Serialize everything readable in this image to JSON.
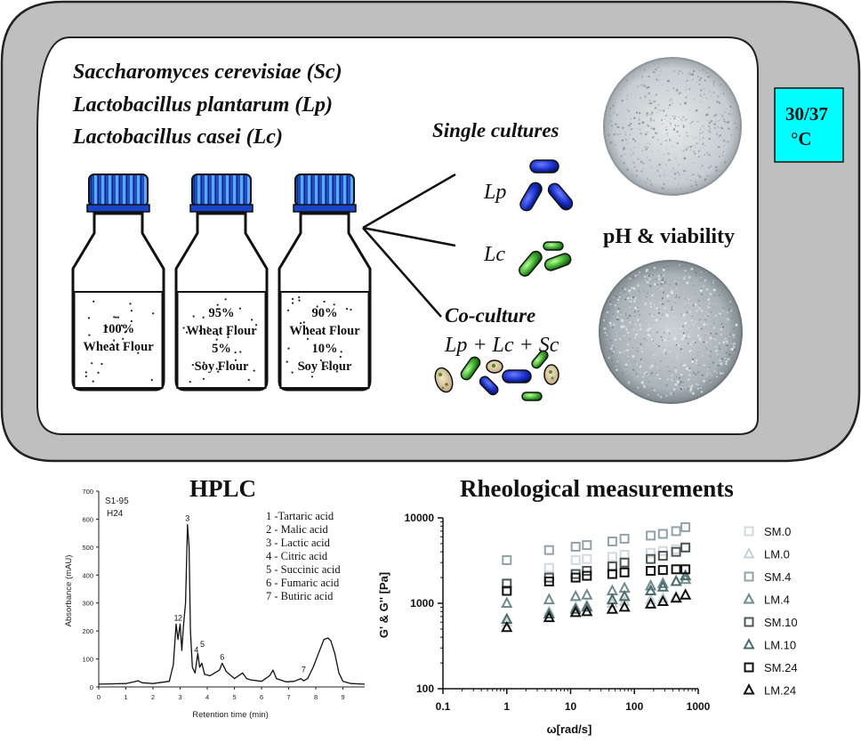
{
  "organisms": [
    "Saccharomyces cerevisiae (Sc)",
    "Lactobacillus plantarum (Lp)",
    "Lactobacillus casei (Lc)"
  ],
  "bottles": [
    {
      "lines": [
        "100%",
        "Wheat Flour"
      ]
    },
    {
      "lines": [
        "95%",
        "Wheat Flour",
        "5%",
        "Soy Flour"
      ]
    },
    {
      "lines": [
        "90%",
        "Wheat Flour",
        "10%",
        "Soy Flour"
      ]
    }
  ],
  "single_cultures_label": "Single cultures",
  "lp_label": "Lp",
  "lc_label": "Lc",
  "coculture_label": "Co-culture",
  "coculture_formula": "Lp + Lc + Sc",
  "ph_viability_label": "pH & viability",
  "temperature": {
    "line1": "30/37",
    "line2": "°C",
    "color": "#00ffff"
  },
  "hplc": {
    "title": "HPLC",
    "sample_line1": "S1-95",
    "sample_line2": "H24",
    "ylabel": "Absorbance (mAU)",
    "xlabel": "Retention time (min)",
    "legend": [
      "1 -Tartaric acid",
      "2 - Malic acid",
      "3 - Lactic acid",
      "4 - Citric acid",
      "5 - Succinic acid",
      "6 - Fumaric acid",
      "7 - Butiric acid"
    ],
    "chart_data": {
      "type": "line",
      "xlabel": "Retention time (min)",
      "ylabel": "Absorbance (mAU)",
      "xlim": [
        0,
        9.8
      ],
      "ylim": [
        0,
        700
      ],
      "xticks": [
        0,
        1,
        2,
        3,
        4,
        5,
        6,
        7,
        8,
        9
      ],
      "yticks": [
        0,
        100,
        200,
        300,
        400,
        500,
        600,
        700
      ],
      "x": [
        0,
        1.0,
        1.3,
        1.45,
        1.6,
        2.0,
        2.6,
        2.75,
        2.85,
        2.92,
        3.0,
        3.06,
        3.12,
        3.2,
        3.27,
        3.33,
        3.38,
        3.45,
        3.55,
        3.65,
        3.72,
        3.8,
        3.9,
        4.1,
        4.45,
        4.55,
        4.7,
        5.0,
        5.3,
        5.45,
        5.6,
        6.0,
        6.3,
        6.42,
        6.55,
        6.9,
        7.2,
        7.45,
        7.55,
        7.7,
        7.9,
        8.1,
        8.3,
        8.45,
        8.55,
        8.7,
        8.85,
        9.0,
        9.3,
        9.8
      ],
      "y": [
        10,
        12,
        18,
        22,
        15,
        12,
        20,
        80,
        225,
        170,
        225,
        130,
        215,
        300,
        580,
        500,
        200,
        70,
        50,
        120,
        70,
        85,
        45,
        40,
        60,
        85,
        55,
        30,
        50,
        30,
        25,
        20,
        40,
        60,
        30,
        18,
        20,
        30,
        22,
        30,
        70,
        120,
        170,
        175,
        165,
        120,
        50,
        20,
        12,
        10
      ],
      "peak_labels": [
        {
          "label": "1",
          "x": 2.85,
          "y": 225
        },
        {
          "label": "2",
          "x": 3.0,
          "y": 225
        },
        {
          "label": "3",
          "x": 3.27,
          "y": 580
        },
        {
          "label": "4",
          "x": 3.6,
          "y": 110
        },
        {
          "label": "5",
          "x": 3.82,
          "y": 130
        },
        {
          "label": "6",
          "x": 4.55,
          "y": 85
        },
        {
          "label": "7",
          "x": 7.55,
          "y": 40
        }
      ]
    }
  },
  "rheology": {
    "title": "Rheological measurements",
    "ylabel": "G' & G'' [Pa]",
    "xlabel": "ω[rad/s]",
    "xtick_labels": [
      "0.1",
      "1",
      "10",
      "100",
      "1000"
    ],
    "ytick_labels": [
      "100",
      "1000",
      "10000"
    ],
    "chart_data": {
      "type": "scatter",
      "xscale": "log",
      "yscale": "log",
      "xlim": [
        0.1,
        1000
      ],
      "ylim": [
        100,
        10000
      ],
      "x": [
        1,
        4.6,
        12,
        18,
        45,
        70,
        180,
        280,
        450,
        630
      ],
      "series": [
        {
          "name": "SM.0",
          "marker": "square",
          "color": "#d3d9de",
          "values": [
            1400,
            2600,
            3200,
            3300,
            3500,
            3700,
            3900,
            4100,
            4300,
            4500
          ]
        },
        {
          "name": "LM.0",
          "marker": "triangle",
          "color": "#c6d2d6",
          "values": [
            600,
            800,
            900,
            950,
            1000,
            1050,
            1100,
            1150,
            1200,
            1250
          ]
        },
        {
          "name": "SM.4",
          "marker": "square",
          "color": "#93a1a8",
          "values": [
            3200,
            4200,
            4600,
            4800,
            5300,
            5700,
            6200,
            6500,
            7000,
            7800
          ]
        },
        {
          "name": "LM.4",
          "marker": "triangle",
          "color": "#6f8a8e",
          "values": [
            1000,
            1100,
            1200,
            1250,
            1400,
            1500,
            1600,
            1700,
            1800,
            1900
          ]
        },
        {
          "name": "SM.10",
          "marker": "square",
          "color": "#4d5757",
          "values": [
            1700,
            2000,
            2200,
            2400,
            2700,
            3000,
            3300,
            3600,
            4000,
            4500
          ]
        },
        {
          "name": "LM.10",
          "marker": "triangle",
          "color": "#4e6b6c",
          "values": [
            650,
            750,
            850,
            900,
            1100,
            1200,
            1400,
            1550,
            1800,
            2100
          ]
        },
        {
          "name": "SM.24",
          "marker": "square",
          "color": "#111111",
          "values": [
            1400,
            1800,
            2000,
            2100,
            2200,
            2300,
            2400,
            2450,
            2500,
            2500
          ]
        },
        {
          "name": "LM.24",
          "marker": "triangle",
          "color": "#111111",
          "values": [
            520,
            680,
            780,
            800,
            850,
            900,
            980,
            1050,
            1150,
            1250
          ]
        }
      ]
    }
  }
}
